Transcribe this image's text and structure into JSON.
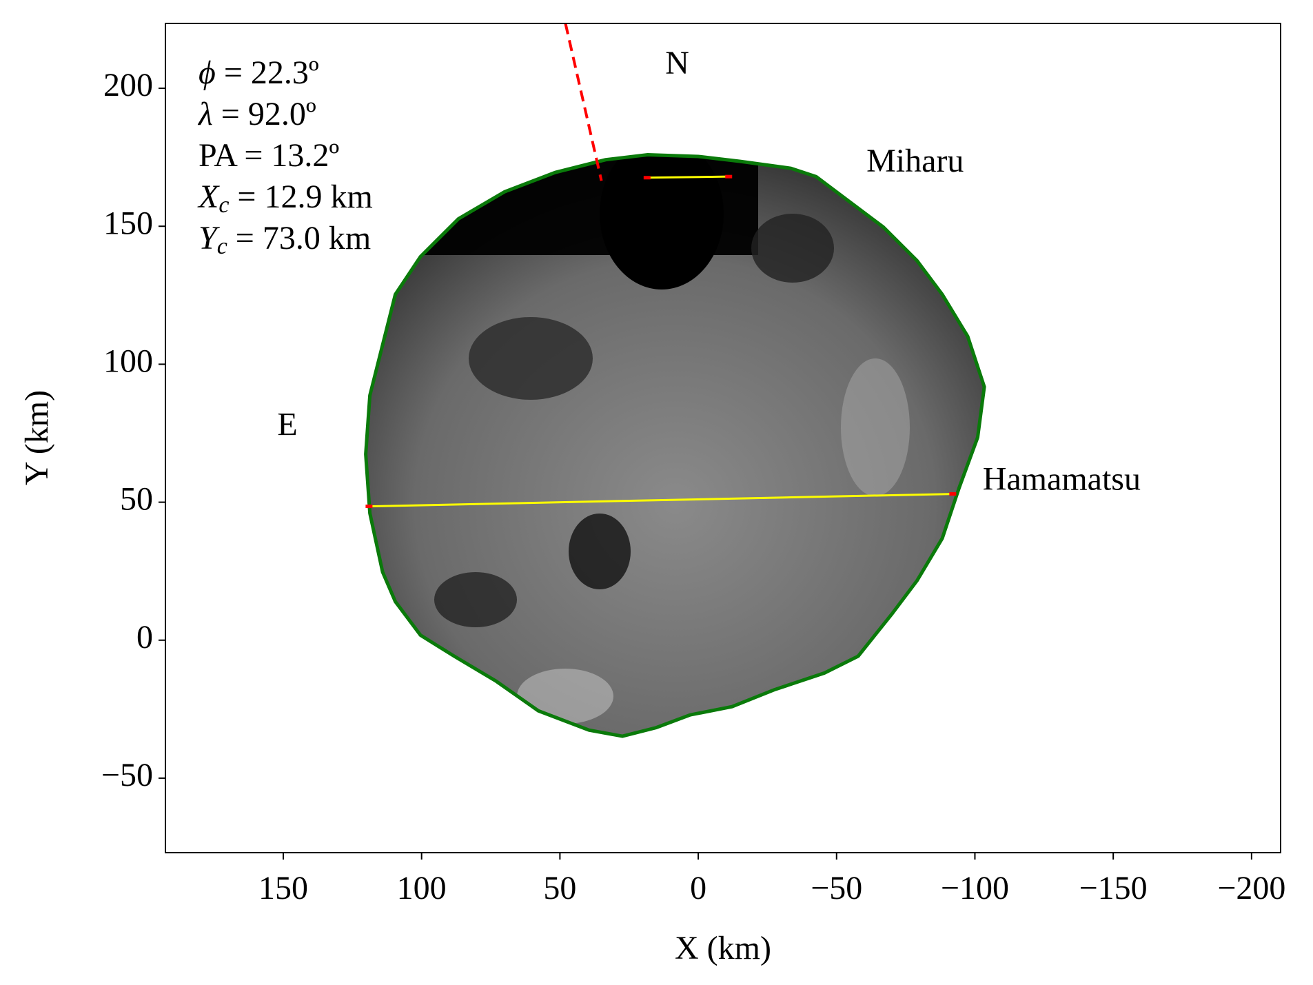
{
  "chart_data": {
    "type": "occultation",
    "xlabel": "X (km)",
    "ylabel": "Y (km)",
    "xlim": [
      192.6,
      -210.5
    ],
    "ylim": [
      -77,
      223.5
    ],
    "xticks": [
      150,
      100,
      50,
      0,
      {
        "value": -50,
        "label": "−50"
      },
      {
        "value": -100,
        "label": "−100"
      },
      {
        "value": -150,
        "label": "−150"
      },
      {
        "value": -200,
        "label": "−200"
      }
    ],
    "yticks": [
      {
        "value": -50,
        "label": "−50"
      },
      0,
      50,
      100,
      150,
      200
    ],
    "shape": {
      "color": "#0a7a0a",
      "x": [
        120.2,
        118.7,
        114.1,
        109.5,
        100.4,
        86.7,
        70.0,
        51.7,
        33.5,
        18.3,
        0,
        -15.2,
        -33.5,
        -42.6,
        -54.8,
        -66.9,
        -79.1,
        -88.2,
        -97.4,
        -103.4,
        -101.0,
        -94.3,
        -88.2,
        -79.1,
        -70.0,
        -57.8,
        -45.6,
        -27.4,
        -12.2,
        3.0,
        15.2,
        27.4,
        39.5,
        57.8,
        73.0,
        88.2,
        100.4,
        109.5,
        114.1,
        118.7
      ],
      "y": [
        67.4,
        88.7,
        107.0,
        125.3,
        139.0,
        152.7,
        162.5,
        169.5,
        174.1,
        175.9,
        175.3,
        173.5,
        171.0,
        168.0,
        158.8,
        149.7,
        137.5,
        125.3,
        110.1,
        91.8,
        73.5,
        55.2,
        36.9,
        21.6,
        9.5,
        -5.8,
        -11.9,
        -18.0,
        -24.1,
        -27.1,
        -31.7,
        -34.8,
        -32.6,
        -25.6,
        -14.9,
        -5.8,
        1.8,
        14.0,
        24.7,
        46.0
      ]
    },
    "chords": [
      {
        "name": "Miharu",
        "color": "#ffff00",
        "x": [
          18.5,
          -11
        ],
        "y": [
          167.6,
          168.0
        ],
        "label_x": -60.8,
        "label_y": 172.6
      },
      {
        "name": "Hamamatsu",
        "color": "#ffff00",
        "x": [
          119,
          -92
        ],
        "y": [
          48.5,
          53.0
        ],
        "label_x": -102.8,
        "label_y": 57.3
      }
    ],
    "north_line": {
      "color": "#ff0000",
      "x": [
        48,
        35
      ],
      "y": [
        223.5,
        166.5
      ]
    },
    "directions": [
      {
        "label": "N",
        "x": 7.6,
        "y": 208
      },
      {
        "label": "E",
        "x": 148.5,
        "y": 77
      }
    ],
    "annotations": [
      {
        "symbol": "ϕ",
        "text": " = 22.3º"
      },
      {
        "symbol": "λ",
        "text": " = 92.0º"
      },
      {
        "symbol": "PA",
        "text": " = 13.2º"
      },
      {
        "symbol": "X",
        "subscript": "c",
        "text": " = 12.9 km"
      },
      {
        "symbol": "Y",
        "subscript": "c",
        "text": " = 73.0 km"
      }
    ]
  }
}
